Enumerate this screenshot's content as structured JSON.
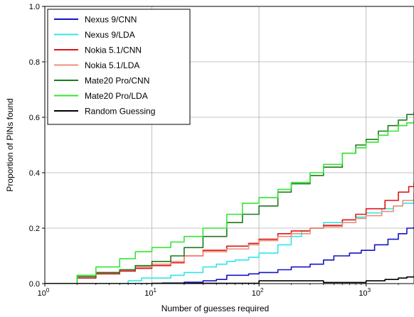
{
  "chart_data": {
    "type": "line",
    "title": "",
    "xlabel": "Number of guesses required",
    "ylabel": "Proportion of PINs found",
    "xscale": "log",
    "xlim": [
      1,
      2800
    ],
    "ylim": [
      0,
      1.0
    ],
    "grid": true,
    "legend_position": "top-left",
    "x_ticks": [
      {
        "value": 1,
        "base": "10",
        "exp": "0"
      },
      {
        "value": 10,
        "base": "10",
        "exp": "1"
      },
      {
        "value": 100,
        "base": "10",
        "exp": "2"
      },
      {
        "value": 1000,
        "base": "10",
        "exp": "3"
      }
    ],
    "y_ticks": [
      "0.0",
      "0.2",
      "0.4",
      "0.6",
      "0.8",
      "1.0"
    ],
    "series": [
      {
        "name": "Nexus 9/CNN",
        "color": "#1414c8",
        "points": [
          [
            1,
            0
          ],
          [
            12,
            0
          ],
          [
            12.5,
            0.002
          ],
          [
            20,
            0.005
          ],
          [
            30,
            0.01
          ],
          [
            40,
            0.015
          ],
          [
            50,
            0.03
          ],
          [
            80,
            0.035
          ],
          [
            100,
            0.04
          ],
          [
            150,
            0.05
          ],
          [
            200,
            0.06
          ],
          [
            300,
            0.07
          ],
          [
            400,
            0.085
          ],
          [
            500,
            0.1
          ],
          [
            600,
            0.1
          ],
          [
            700,
            0.11
          ],
          [
            900,
            0.12
          ],
          [
            1200,
            0.14
          ],
          [
            1600,
            0.16
          ],
          [
            2000,
            0.18
          ],
          [
            2400,
            0.2
          ],
          [
            2800,
            0.205
          ]
        ]
      },
      {
        "name": "Nexus 9/LDA",
        "color": "#32e6e6",
        "points": [
          [
            1,
            0
          ],
          [
            5,
            0
          ],
          [
            6,
            0.01
          ],
          [
            8,
            0.02
          ],
          [
            12,
            0.02
          ],
          [
            15,
            0.03
          ],
          [
            20,
            0.04
          ],
          [
            30,
            0.06
          ],
          [
            40,
            0.07
          ],
          [
            50,
            0.08
          ],
          [
            60,
            0.085
          ],
          [
            80,
            0.095
          ],
          [
            100,
            0.11
          ],
          [
            150,
            0.14
          ],
          [
            200,
            0.17
          ],
          [
            250,
            0.19
          ],
          [
            300,
            0.2
          ],
          [
            400,
            0.22
          ],
          [
            600,
            0.23
          ],
          [
            800,
            0.24
          ],
          [
            1000,
            0.255
          ],
          [
            1400,
            0.27
          ],
          [
            1800,
            0.28
          ],
          [
            2200,
            0.29
          ],
          [
            2800,
            0.31
          ]
        ]
      },
      {
        "name": "Nokia 5.1/CNN",
        "color": "#dc1414",
        "points": [
          [
            1,
            0
          ],
          [
            2,
            0.02
          ],
          [
            3,
            0.035
          ],
          [
            5,
            0.045
          ],
          [
            7,
            0.055
          ],
          [
            10,
            0.065
          ],
          [
            15,
            0.075
          ],
          [
            20,
            0.1
          ],
          [
            30,
            0.12
          ],
          [
            50,
            0.135
          ],
          [
            80,
            0.145
          ],
          [
            100,
            0.16
          ],
          [
            150,
            0.18
          ],
          [
            200,
            0.19
          ],
          [
            300,
            0.2
          ],
          [
            400,
            0.21
          ],
          [
            600,
            0.23
          ],
          [
            800,
            0.25
          ],
          [
            1000,
            0.27
          ],
          [
            1500,
            0.3
          ],
          [
            2000,
            0.33
          ],
          [
            2500,
            0.35
          ],
          [
            2800,
            0.365
          ]
        ]
      },
      {
        "name": "Nokia 5.1/LDA",
        "color": "#f08c78",
        "points": [
          [
            1,
            0
          ],
          [
            2,
            0.025
          ],
          [
            3,
            0.04
          ],
          [
            5,
            0.05
          ],
          [
            7,
            0.06
          ],
          [
            10,
            0.07
          ],
          [
            15,
            0.08
          ],
          [
            20,
            0.1
          ],
          [
            30,
            0.115
          ],
          [
            50,
            0.125
          ],
          [
            80,
            0.14
          ],
          [
            100,
            0.155
          ],
          [
            150,
            0.17
          ],
          [
            200,
            0.18
          ],
          [
            300,
            0.2
          ],
          [
            400,
            0.205
          ],
          [
            600,
            0.22
          ],
          [
            800,
            0.235
          ],
          [
            1000,
            0.245
          ],
          [
            1400,
            0.26
          ],
          [
            1800,
            0.28
          ],
          [
            2200,
            0.3
          ],
          [
            2800,
            0.33
          ]
        ]
      },
      {
        "name": "Mate20 Pro/CNN",
        "color": "#1e781e",
        "points": [
          [
            1,
            0
          ],
          [
            2,
            0.025
          ],
          [
            3,
            0.04
          ],
          [
            5,
            0.05
          ],
          [
            7,
            0.065
          ],
          [
            10,
            0.08
          ],
          [
            15,
            0.1
          ],
          [
            20,
            0.13
          ],
          [
            30,
            0.17
          ],
          [
            50,
            0.22
          ],
          [
            70,
            0.25
          ],
          [
            100,
            0.28
          ],
          [
            150,
            0.33
          ],
          [
            200,
            0.36
          ],
          [
            300,
            0.39
          ],
          [
            400,
            0.42
          ],
          [
            600,
            0.47
          ],
          [
            800,
            0.5
          ],
          [
            1000,
            0.52
          ],
          [
            1300,
            0.55
          ],
          [
            1600,
            0.57
          ],
          [
            2000,
            0.59
          ],
          [
            2400,
            0.61
          ],
          [
            2800,
            0.62
          ]
        ]
      },
      {
        "name": "Mate20 Pro/LDA",
        "color": "#32e632",
        "points": [
          [
            1,
            0
          ],
          [
            2,
            0.03
          ],
          [
            3,
            0.06
          ],
          [
            5,
            0.09
          ],
          [
            7,
            0.115
          ],
          [
            10,
            0.13
          ],
          [
            15,
            0.15
          ],
          [
            20,
            0.17
          ],
          [
            30,
            0.2
          ],
          [
            50,
            0.25
          ],
          [
            70,
            0.29
          ],
          [
            100,
            0.31
          ],
          [
            150,
            0.34
          ],
          [
            200,
            0.365
          ],
          [
            300,
            0.4
          ],
          [
            400,
            0.43
          ],
          [
            600,
            0.47
          ],
          [
            800,
            0.49
          ],
          [
            1000,
            0.51
          ],
          [
            1300,
            0.535
          ],
          [
            1600,
            0.55
          ],
          [
            2000,
            0.57
          ],
          [
            2400,
            0.58
          ],
          [
            2800,
            0.59
          ]
        ]
      },
      {
        "name": "Random Guessing",
        "color": "#000000",
        "points": [
          [
            1,
            0.0001
          ],
          [
            10,
            0.001
          ],
          [
            100,
            0.01
          ],
          [
            400,
            0.004
          ],
          [
            1000,
            0.01
          ],
          [
            1500,
            0.015
          ],
          [
            2000,
            0.02
          ],
          [
            2400,
            0.024
          ],
          [
            2800,
            0.028
          ]
        ]
      }
    ]
  }
}
